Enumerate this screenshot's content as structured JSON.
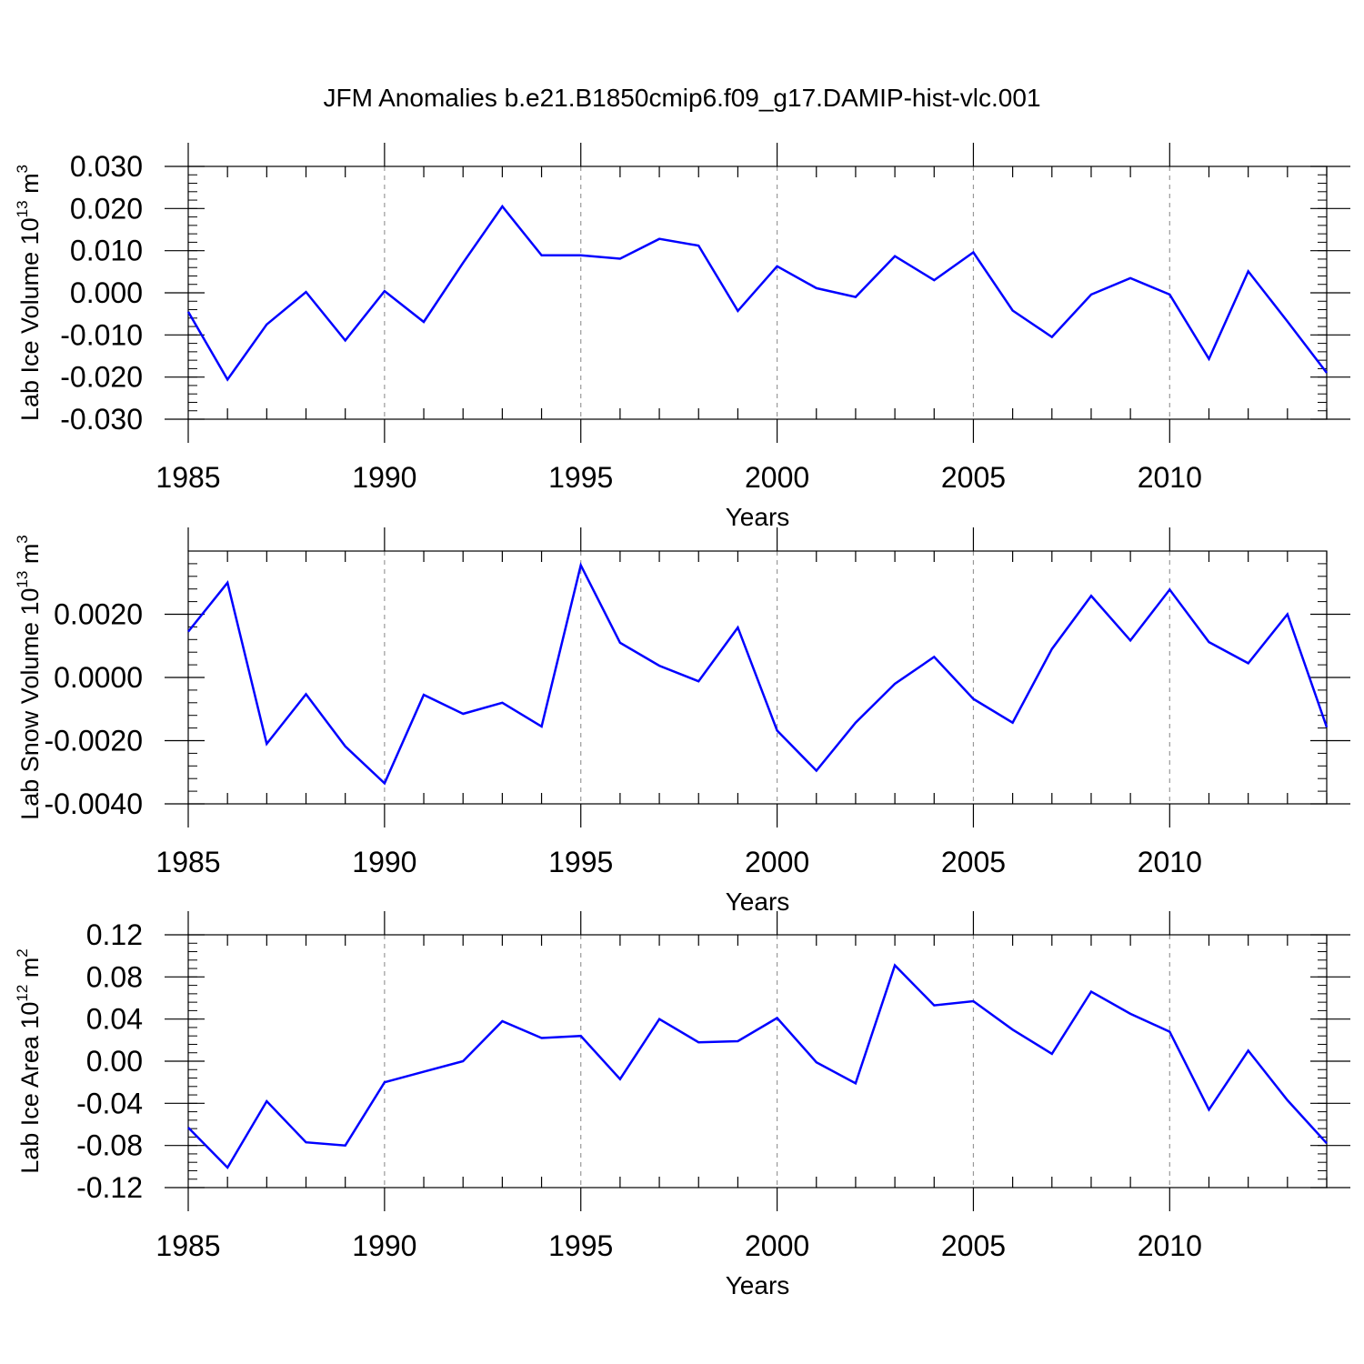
{
  "figure": {
    "title": "JFM Anomalies b.e21.B1850cmip6.f09_g17.DAMIP-hist-vlc.001"
  },
  "chart_data": [
    {
      "type": "line",
      "xlabel": "Years",
      "ylabel": "Lab Ice Volume 10",
      "ylabel_exp": "13",
      "ylabel_unit": " m",
      "ylabel_unit_exp": "3",
      "x": [
        1985,
        1986,
        1987,
        1988,
        1989,
        1990,
        1991,
        1992,
        1993,
        1994,
        1995,
        1996,
        1997,
        1998,
        1999,
        2000,
        2001,
        2002,
        2003,
        2004,
        2005,
        2006,
        2007,
        2008,
        2009,
        2010,
        2011,
        2012,
        2013,
        2014
      ],
      "values": [
        -0.0045,
        -0.0206,
        -0.0075,
        0.0002,
        -0.0113,
        0.0004,
        -0.0069,
        0.0071,
        0.0205,
        0.0089,
        0.0089,
        0.0081,
        0.0128,
        0.0112,
        -0.0043,
        0.0063,
        0.0011,
        -0.001,
        0.0087,
        0.003,
        0.0096,
        -0.0042,
        -0.0105,
        -0.0004,
        0.0035,
        -0.0004,
        -0.0157,
        0.0051,
        -0.0068,
        -0.019
      ],
      "xlim": [
        1985,
        2014
      ],
      "ylim": [
        -0.03,
        0.03
      ],
      "xticks": [
        1985,
        1990,
        1995,
        2000,
        2005,
        2010
      ],
      "yticks": [
        -0.03,
        -0.02,
        -0.01,
        0.0,
        0.01,
        0.02,
        0.03
      ],
      "yticklabels": [
        "-0.030",
        "-0.020",
        "-0.010",
        "0.000",
        "0.010",
        "0.020",
        "0.030"
      ],
      "ytick_visible": [
        true,
        true,
        true,
        true,
        true,
        true,
        true
      ],
      "grid": "vertical dashed at major x ticks",
      "line_color": "#0000ff"
    },
    {
      "type": "line",
      "xlabel": "Years",
      "ylabel": "Lab Snow Volume 10",
      "ylabel_exp": "13",
      "ylabel_unit": " m",
      "ylabel_unit_exp": "3",
      "x": [
        1985,
        1986,
        1987,
        1988,
        1989,
        1990,
        1991,
        1992,
        1993,
        1994,
        1995,
        1996,
        1997,
        1998,
        1999,
        2000,
        2001,
        2002,
        2003,
        2004,
        2005,
        2006,
        2007,
        2008,
        2009,
        2010,
        2011,
        2012,
        2013,
        2014
      ],
      "values": [
        0.00145,
        0.003,
        -0.0021,
        -0.00053,
        -0.00218,
        -0.00335,
        -0.00055,
        -0.00115,
        -0.0008,
        -0.00155,
        0.00355,
        0.0011,
        0.00037,
        -0.00012,
        0.00158,
        -0.00168,
        -0.00295,
        -0.00143,
        -0.0002,
        0.00065,
        -0.00068,
        -0.00143,
        0.0009,
        0.00258,
        0.00117,
        0.00278,
        0.00112,
        0.00045,
        0.002,
        -0.00157
      ],
      "xlim": [
        1985,
        2014
      ],
      "ylim": [
        -0.004,
        0.004
      ],
      "xticks": [
        1985,
        1990,
        1995,
        2000,
        2005,
        2010
      ],
      "yticks": [
        -0.004,
        -0.002,
        0.0,
        0.002
      ],
      "yticklabels": [
        "-0.0040",
        "-0.0020",
        "0.0000",
        "0.0020"
      ],
      "ytick_visible": [
        true,
        true,
        true,
        true
      ],
      "grid": "vertical dashed at major x ticks",
      "line_color": "#0000ff"
    },
    {
      "type": "line",
      "xlabel": "Years",
      "ylabel": "Lab Ice Area 10",
      "ylabel_exp": "12",
      "ylabel_unit": " m",
      "ylabel_unit_exp": "2",
      "x": [
        1985,
        1986,
        1987,
        1988,
        1989,
        1990,
        1991,
        1992,
        1993,
        1994,
        1995,
        1996,
        1997,
        1998,
        1999,
        2000,
        2001,
        2002,
        2003,
        2004,
        2005,
        2006,
        2007,
        2008,
        2009,
        2010,
        2011,
        2012,
        2013,
        2014
      ],
      "values": [
        -0.063,
        -0.101,
        -0.038,
        -0.077,
        -0.08,
        -0.02,
        -0.01,
        0.0,
        0.038,
        0.022,
        0.024,
        -0.017,
        0.04,
        0.018,
        0.019,
        0.041,
        -0.001,
        -0.021,
        0.091,
        0.053,
        0.057,
        0.03,
        0.007,
        0.066,
        0.045,
        0.028,
        -0.046,
        0.01,
        -0.037,
        -0.078
      ],
      "xlim": [
        1985,
        2014
      ],
      "ylim": [
        -0.12,
        0.12
      ],
      "xticks": [
        1985,
        1990,
        1995,
        2000,
        2005,
        2010
      ],
      "yticks": [
        -0.12,
        -0.08,
        -0.04,
        0.0,
        0.04,
        0.08,
        0.12
      ],
      "yticklabels": [
        "-0.12",
        "-0.08",
        "-0.04",
        "0.00",
        "0.04",
        "0.08",
        "0.12"
      ],
      "ytick_visible": [
        true,
        true,
        true,
        true,
        true,
        true,
        true
      ],
      "grid": "vertical dashed at major x ticks",
      "line_color": "#0000ff"
    }
  ]
}
